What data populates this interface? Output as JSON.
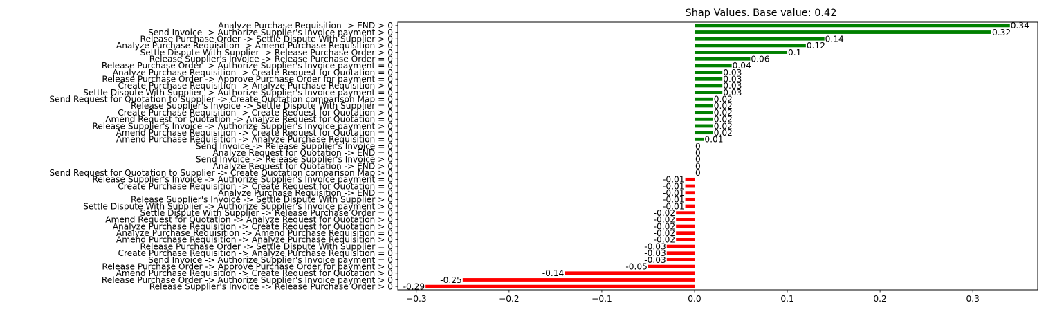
{
  "chart_data": {
    "type": "bar",
    "orientation": "horizontal",
    "title": "Shap Values. Base value: 0.42",
    "xlabel": "",
    "ylabel": "",
    "xlim": [
      -0.32,
      0.37
    ],
    "xticks": [
      -0.3,
      -0.2,
      -0.1,
      0.0,
      0.1,
      0.2,
      0.3
    ],
    "xtick_labels": [
      "−0.3",
      "−0.2",
      "−0.1",
      "0.0",
      "0.1",
      "0.2",
      "0.3"
    ],
    "grid": false,
    "positive_color": "#008000",
    "negative_color": "#ff0000",
    "bars": [
      {
        "label": "Analyze Purchase Requisition -> END > 0",
        "value": 0.34,
        "value_label": "0.34"
      },
      {
        "label": "Send Invoice -> Authorize Supplier's Invoice payment > 0",
        "value": 0.32,
        "value_label": "0.32"
      },
      {
        "label": "Release Purchase Order -> Settle Dispute With Supplier > 0",
        "value": 0.14,
        "value_label": "0.14"
      },
      {
        "label": "Analyze Purchase Requisition -> Amend Purchase Requisition > 0",
        "value": 0.12,
        "value_label": "0.12"
      },
      {
        "label": "Settle Dispute With Supplier -> Release Purchase Order > 0",
        "value": 0.1,
        "value_label": "0.1"
      },
      {
        "label": "Release Supplier's Invoice -> Release Purchase Order = 0",
        "value": 0.06,
        "value_label": "0.06"
      },
      {
        "label": "Release Purchase Order -> Authorize Supplier's Invoice payment = 0",
        "value": 0.04,
        "value_label": "0.04"
      },
      {
        "label": "Analyze Purchase Requisition -> Create Request for Quotation = 0",
        "value": 0.03,
        "value_label": "0.03"
      },
      {
        "label": "Release Purchase Order -> Approve Purchase Order for payment = 0",
        "value": 0.03,
        "value_label": "0.03"
      },
      {
        "label": "Create Purchase Requisition -> Analyze Purchase Requisition > 0",
        "value": 0.03,
        "value_label": "0.03"
      },
      {
        "label": "Settle Dispute With Supplier -> Authorize Supplier's Invoice payment = 0",
        "value": 0.03,
        "value_label": "0.03"
      },
      {
        "label": "Send Request for Quotation to Supplier -> Create Quotation comparison Map = 0",
        "value": 0.02,
        "value_label": "0.02"
      },
      {
        "label": "Release Supplier's Invoice -> Settle Dispute With Supplier = 0",
        "value": 0.02,
        "value_label": "0.02"
      },
      {
        "label": "Create Purchase Requisition -> Create Request for Quotation > 0",
        "value": 0.02,
        "value_label": "0.02"
      },
      {
        "label": "Amend Request for Quotation -> Analyze Request for Quotation = 0",
        "value": 0.02,
        "value_label": "0.02"
      },
      {
        "label": "Release Supplier's Invoice -> Authorize Supplier's Invoice payment > 0",
        "value": 0.02,
        "value_label": "0.02"
      },
      {
        "label": "Amend Purchase Requisition -> Create Request for Quotation = 0",
        "value": 0.02,
        "value_label": "0.02"
      },
      {
        "label": "Amend Purchase Requisition -> Analyze Purchase Requisition = 0",
        "value": 0.01,
        "value_label": "0.01"
      },
      {
        "label": "Send Invoice -> Release Supplier's Invoice = 0",
        "value": 0,
        "value_label": "0"
      },
      {
        "label": "Analyze Request for Quotation -> END = 0",
        "value": 0,
        "value_label": "0"
      },
      {
        "label": "Send Invoice -> Release Supplier's Invoice > 0",
        "value": 0,
        "value_label": "0"
      },
      {
        "label": "Analyze Request for Quotation -> END > 0",
        "value": 0,
        "value_label": "0"
      },
      {
        "label": "Send Request for Quotation to Supplier -> Create Quotation comparison Map > 0",
        "value": 0,
        "value_label": "0"
      },
      {
        "label": "Release Supplier's Invoice -> Authorize Supplier's Invoice payment = 0",
        "value": -0.01,
        "value_label": "-0.01"
      },
      {
        "label": "Create Purchase Requisition -> Create Request for Quotation = 0",
        "value": -0.01,
        "value_label": "-0.01"
      },
      {
        "label": "Analyze Purchase Requisition -> END = 0",
        "value": -0.01,
        "value_label": "-0.01"
      },
      {
        "label": "Release Supplier's Invoice -> Settle Dispute With Supplier > 0",
        "value": -0.01,
        "value_label": "-0.01"
      },
      {
        "label": "Settle Dispute With Supplier -> Authorize Supplier's Invoice payment > 0",
        "value": -0.01,
        "value_label": "-0.01"
      },
      {
        "label": "Settle Dispute With Supplier -> Release Purchase Order = 0",
        "value": -0.02,
        "value_label": "-0.02"
      },
      {
        "label": "Amend Request for Quotation -> Analyze Request for Quotation > 0",
        "value": -0.02,
        "value_label": "-0.02"
      },
      {
        "label": "Analyze Purchase Requisition -> Create Request for Quotation > 0",
        "value": -0.02,
        "value_label": "-0.02"
      },
      {
        "label": "Analyze Purchase Requisition -> Amend Purchase Requisition = 0",
        "value": -0.02,
        "value_label": "-0.02"
      },
      {
        "label": "Amend Purchase Requisition -> Analyze Purchase Requisition > 0",
        "value": -0.02,
        "value_label": "-0.02"
      },
      {
        "label": "Release Purchase Order -> Settle Dispute With Supplier = 0",
        "value": -0.03,
        "value_label": "-0.03"
      },
      {
        "label": "Create Purchase Requisition -> Analyze Purchase Requisition = 0",
        "value": -0.03,
        "value_label": "-0.03"
      },
      {
        "label": "Send Invoice -> Authorize Supplier's Invoice payment = 0",
        "value": -0.03,
        "value_label": "-0.03"
      },
      {
        "label": "Release Purchase Order -> Approve Purchase Order for payment > 0",
        "value": -0.05,
        "value_label": "-0.05"
      },
      {
        "label": "Amend Purchase Requisition -> Create Request for Quotation > 0",
        "value": -0.14,
        "value_label": "-0.14"
      },
      {
        "label": "Release Purchase Order -> Authorize Supplier's Invoice payment > 0",
        "value": -0.25,
        "value_label": "-0.25"
      },
      {
        "label": "Release Supplier's Invoice -> Release Purchase Order > 0",
        "value": -0.29,
        "value_label": "-0.29"
      }
    ]
  }
}
